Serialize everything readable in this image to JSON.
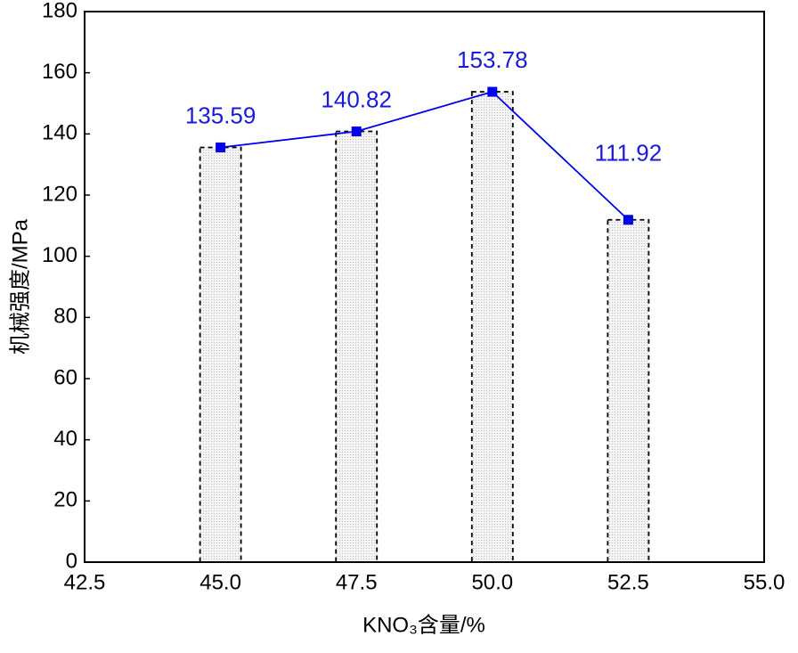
{
  "chart_data": {
    "type": "bar_line",
    "xlabel": "KNO₃含量/%",
    "ylabel": "机械强度/MPa",
    "x": [
      45,
      47.5,
      50,
      52.5
    ],
    "values": [
      135.59,
      140.82,
      153.78,
      111.92
    ],
    "bar_color": "#e6e6e6",
    "line_color": "#0000ee",
    "label_color": "#1a1adb",
    "xlim": [
      42.5,
      55
    ],
    "xticks": [
      42.5,
      {
        "value": 45,
        "label": "45.0"
      },
      47.5,
      {
        "value": 50,
        "label": "50.0"
      },
      52.5,
      {
        "value": 55,
        "label": "55.0"
      }
    ],
    "ylim": [
      0,
      180
    ],
    "yticks": [
      0,
      20,
      40,
      60,
      80,
      100,
      120,
      140,
      160,
      180
    ],
    "grid": false
  }
}
